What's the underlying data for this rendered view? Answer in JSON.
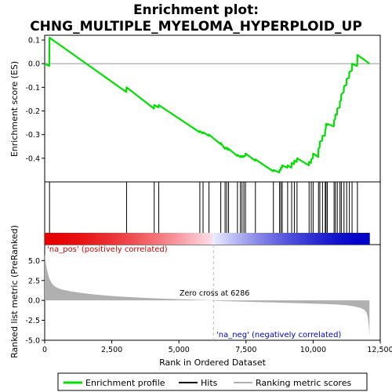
{
  "chart_data": {
    "type": "line",
    "title_line1": "Enrichment plot:",
    "title_line2": "CHNG_MULTIPLE_MYELOMA_HYPERPLOID_UP",
    "xlabel": "Rank in Ordered Dataset",
    "ylabel_top": "Enrichment score (ES)",
    "ylabel_bottom": "Ranked list metric (PreRanked)",
    "xlim": [
      0,
      12500
    ],
    "x_ticks": [
      0,
      2500,
      5000,
      7500,
      10000,
      12500
    ],
    "x_tick_labels": [
      "0",
      "2,500",
      "5,000",
      "7,500",
      "10,000",
      "12,500"
    ],
    "es_ylim": [
      -0.5,
      0.12
    ],
    "es_ticks": [
      0.1,
      0.0,
      -0.1,
      -0.2,
      -0.3,
      -0.4
    ],
    "es_tick_labels": [
      "0.1",
      "0.0",
      "-0.1",
      "-0.2",
      "-0.3",
      "-0.4"
    ],
    "metric_ylim": [
      -5,
      7
    ],
    "metric_ticks": [
      5.0,
      2.5,
      0.0,
      -2.5,
      -5.0
    ],
    "metric_tick_labels": [
      "5.0",
      "2.5",
      "0.0",
      "-2.5",
      "-5.0"
    ],
    "dataset_size": 12100,
    "zero_cross": 6286,
    "zero_cross_label": "Zero cross at 6286",
    "pos_label": "'na_pos' (positively correlated)",
    "neg_label": "'na_neg' (negatively correlated)",
    "legend": [
      "Enrichment profile",
      "Hits",
      "Ranking metric scores"
    ],
    "colors": {
      "es_line": "#00e000",
      "hits": "#000000",
      "metric_fill": "#b0b0b0",
      "zero_line": "#bbbbbb",
      "pos_dark": "#e60000",
      "neg_dark": "#0000c8"
    },
    "hits": [
      180,
      3050,
      4080,
      4250,
      5780,
      5900,
      6120,
      6560,
      6720,
      6780,
      6850,
      7180,
      7290,
      7350,
      7420,
      7480,
      7850,
      8520,
      8750,
      8800,
      8850,
      9050,
      9200,
      9300,
      9400,
      9850,
      9930,
      10000,
      10200,
      10250,
      10350,
      10450,
      10480,
      10530,
      10780,
      10830,
      10900,
      11000,
      11050,
      11150,
      11250,
      11350,
      11450,
      11650
    ],
    "es_profile": [
      [
        0,
        0.0
      ],
      [
        170,
        -0.01
      ],
      [
        180,
        0.11
      ],
      [
        3040,
        -0.12
      ],
      [
        3050,
        -0.1
      ],
      [
        4070,
        -0.19
      ],
      [
        4080,
        -0.175
      ],
      [
        4240,
        -0.185
      ],
      [
        4250,
        -0.175
      ],
      [
        5770,
        -0.29
      ],
      [
        5780,
        -0.285
      ],
      [
        5890,
        -0.295
      ],
      [
        5900,
        -0.29
      ],
      [
        6110,
        -0.305
      ],
      [
        6120,
        -0.3
      ],
      [
        6550,
        -0.34
      ],
      [
        6560,
        -0.335
      ],
      [
        6710,
        -0.36
      ],
      [
        6720,
        -0.355
      ],
      [
        6770,
        -0.36
      ],
      [
        6780,
        -0.355
      ],
      [
        6840,
        -0.365
      ],
      [
        6850,
        -0.36
      ],
      [
        7170,
        -0.39
      ],
      [
        7180,
        -0.385
      ],
      [
        7280,
        -0.395
      ],
      [
        7290,
        -0.39
      ],
      [
        7340,
        -0.395
      ],
      [
        7350,
        -0.39
      ],
      [
        7410,
        -0.395
      ],
      [
        7420,
        -0.39
      ],
      [
        7470,
        -0.39
      ],
      [
        7480,
        -0.38
      ],
      [
        7840,
        -0.41
      ],
      [
        7850,
        -0.405
      ],
      [
        8510,
        -0.455
      ],
      [
        8520,
        -0.45
      ],
      [
        8740,
        -0.46
      ],
      [
        8750,
        -0.45
      ],
      [
        8790,
        -0.45
      ],
      [
        8800,
        -0.44
      ],
      [
        8840,
        -0.44
      ],
      [
        8850,
        -0.43
      ],
      [
        9040,
        -0.44
      ],
      [
        9050,
        -0.43
      ],
      [
        9190,
        -0.44
      ],
      [
        9200,
        -0.42
      ],
      [
        9290,
        -0.425
      ],
      [
        9300,
        -0.41
      ],
      [
        9390,
        -0.415
      ],
      [
        9400,
        -0.4
      ],
      [
        9840,
        -0.43
      ],
      [
        9850,
        -0.415
      ],
      [
        9920,
        -0.42
      ],
      [
        9930,
        -0.405
      ],
      [
        9990,
        -0.4
      ],
      [
        10000,
        -0.38
      ],
      [
        10190,
        -0.395
      ],
      [
        10200,
        -0.36
      ],
      [
        10240,
        -0.355
      ],
      [
        10250,
        -0.33
      ],
      [
        10340,
        -0.325
      ],
      [
        10350,
        -0.305
      ],
      [
        10440,
        -0.305
      ],
      [
        10450,
        -0.28
      ],
      [
        10470,
        -0.275
      ],
      [
        10480,
        -0.255
      ],
      [
        10520,
        -0.26
      ],
      [
        10530,
        -0.255
      ],
      [
        10770,
        -0.265
      ],
      [
        10780,
        -0.24
      ],
      [
        10820,
        -0.235
      ],
      [
        10830,
        -0.215
      ],
      [
        10890,
        -0.215
      ],
      [
        10900,
        -0.19
      ],
      [
        10990,
        -0.185
      ],
      [
        11000,
        -0.16
      ],
      [
        11040,
        -0.155
      ],
      [
        11050,
        -0.13
      ],
      [
        11140,
        -0.12
      ],
      [
        11150,
        -0.095
      ],
      [
        11240,
        -0.09
      ],
      [
        11250,
        -0.065
      ],
      [
        11340,
        -0.06
      ],
      [
        11350,
        -0.035
      ],
      [
        11440,
        -0.03
      ],
      [
        11450,
        0.0
      ],
      [
        11640,
        -0.01
      ],
      [
        11650,
        0.037
      ],
      [
        12100,
        0.0
      ]
    ]
  }
}
